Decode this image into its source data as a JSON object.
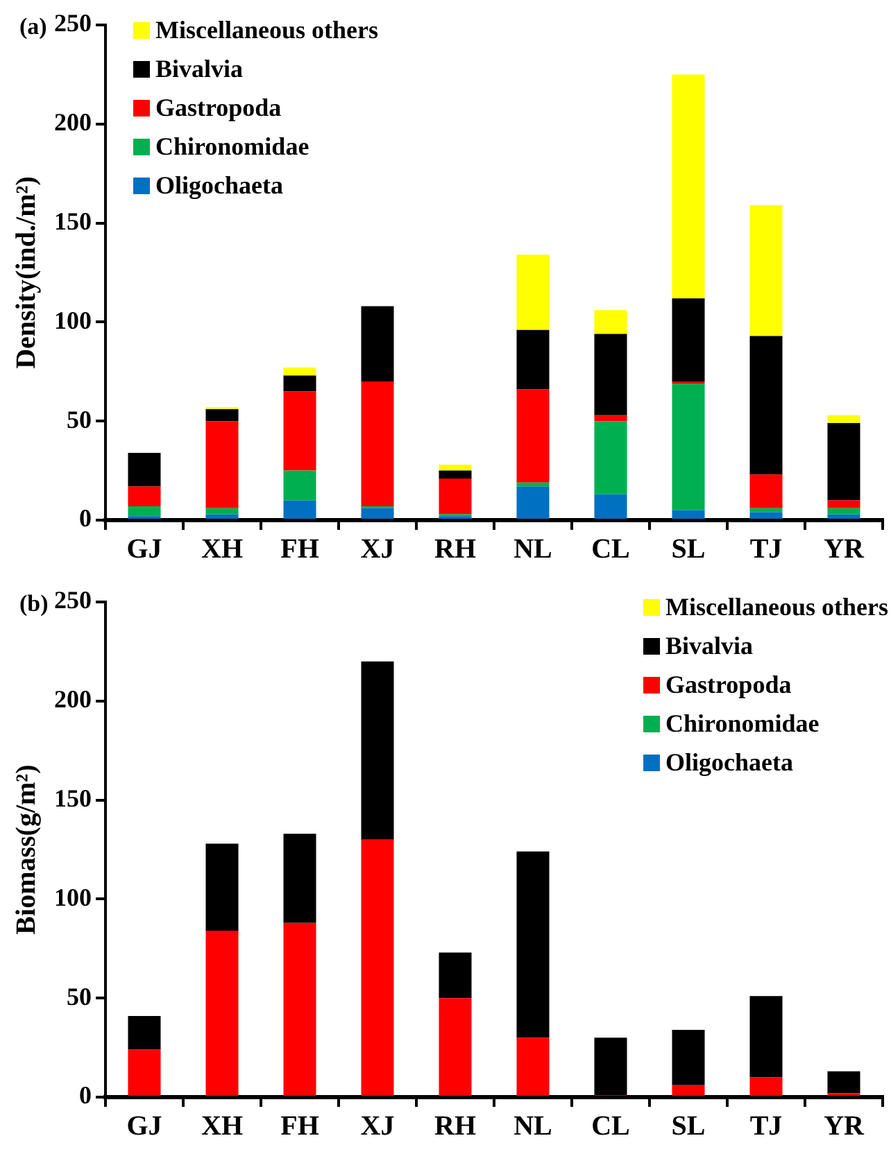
{
  "chart_data": [
    {
      "type": "bar",
      "title": "(a)",
      "ylabel": "Density(ind./m²)",
      "categories": [
        "GJ",
        "XH",
        "FH",
        "XJ",
        "RH",
        "NL",
        "CL",
        "SL",
        "TJ",
        "YR"
      ],
      "stacked": true,
      "ylim": [
        0,
        250
      ],
      "yticks": [
        0,
        50,
        100,
        150,
        200,
        250
      ],
      "grid": false,
      "legend": "top left",
      "series": [
        {
          "name": "Oligochaeta",
          "color": "#0070c0",
          "values": [
            2,
            3,
            10,
            6,
            2,
            17,
            13,
            5,
            4,
            3
          ]
        },
        {
          "name": "Chironomidae",
          "color": "#00b050",
          "values": [
            5,
            3,
            15,
            1,
            1,
            2,
            37,
            64,
            2,
            3
          ]
        },
        {
          "name": "Gastropoda",
          "color": "#ff0000",
          "values": [
            10,
            44,
            40,
            63,
            18,
            47,
            3,
            1,
            17,
            4
          ]
        },
        {
          "name": "Bivalvia",
          "color": "#000000",
          "values": [
            17,
            6,
            8,
            38,
            4,
            30,
            41,
            42,
            70,
            39
          ]
        },
        {
          "name": "Miscellaneous others",
          "color": "#ffff00",
          "values": [
            0,
            1,
            4,
            0,
            3,
            38,
            12,
            113,
            66,
            4
          ]
        }
      ]
    },
    {
      "type": "bar",
      "title": "(b)",
      "ylabel": "Biomass(g/m²)",
      "categories": [
        "GJ",
        "XH",
        "FH",
        "XJ",
        "RH",
        "NL",
        "CL",
        "SL",
        "TJ",
        "YR"
      ],
      "stacked": true,
      "ylim": [
        0,
        250
      ],
      "yticks": [
        0,
        50,
        100,
        150,
        200,
        250
      ],
      "grid": false,
      "legend": "top right",
      "series": [
        {
          "name": "Oligochaeta",
          "color": "#0070c0",
          "values": [
            0,
            0,
            0,
            0,
            0,
            0,
            0,
            0,
            0,
            0
          ]
        },
        {
          "name": "Chironomidae",
          "color": "#00b050",
          "values": [
            0,
            0,
            0,
            0,
            0,
            0,
            0,
            0,
            0,
            0
          ]
        },
        {
          "name": "Gastropoda",
          "color": "#ff0000",
          "values": [
            24,
            84,
            88,
            130,
            50,
            30,
            1,
            6,
            10,
            2
          ]
        },
        {
          "name": "Bivalvia",
          "color": "#000000",
          "values": [
            17,
            44,
            45,
            90,
            23,
            94,
            29,
            28,
            41,
            11
          ]
        },
        {
          "name": "Miscellaneous others",
          "color": "#ffff00",
          "values": [
            0,
            0,
            0,
            0,
            0,
            0,
            0,
            0,
            0,
            0
          ]
        }
      ]
    }
  ]
}
